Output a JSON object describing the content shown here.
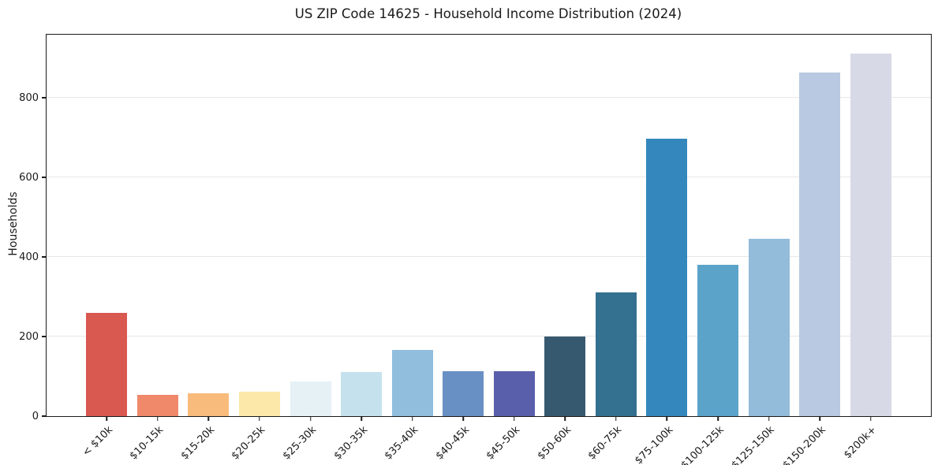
{
  "title": "US ZIP Code 14625 - Household Income Distribution (2024)",
  "chart_data": {
    "type": "bar",
    "title": "US ZIP Code 14625 - Household Income Distribution (2024)",
    "xlabel": "",
    "ylabel": "Households",
    "categories": [
      "< $10k",
      "$10-15k",
      "$15-20k",
      "$20-25k",
      "$25-30k",
      "$30-35k",
      "$35-40k",
      "$40-45k",
      "$45-50k",
      "$50-60k",
      "$60-75k",
      "$75-100k",
      "$100-125k",
      "$125-150k",
      "$150-200k",
      "$200k+"
    ],
    "values": [
      260,
      53,
      57,
      62,
      88,
      110,
      167,
      112,
      112,
      199,
      310,
      697,
      380,
      445,
      863,
      910
    ],
    "bar_colors": [
      "#d95850",
      "#f0896a",
      "#f8bb7b",
      "#fce8a8",
      "#e6f1f6",
      "#c6e1ee",
      "#91bedd",
      "#6890c5",
      "#5a5fab",
      "#36596f",
      "#347090",
      "#3487bd",
      "#5ca3ca",
      "#93bbda",
      "#b9c9e1",
      "#d7d9e7"
    ],
    "yticks": [
      0,
      200,
      400,
      600,
      800
    ],
    "ylim": [
      0,
      958
    ],
    "grid": "horizontal-only",
    "gridlines_at": [
      200,
      400,
      600,
      800
    ],
    "legend": "none",
    "xtick_rotation": -45
  },
  "colors": {
    "background": "#ffffff",
    "spine": "#1a1a1a",
    "grid": "#e7e7e7",
    "text": "#1a1a1a"
  }
}
